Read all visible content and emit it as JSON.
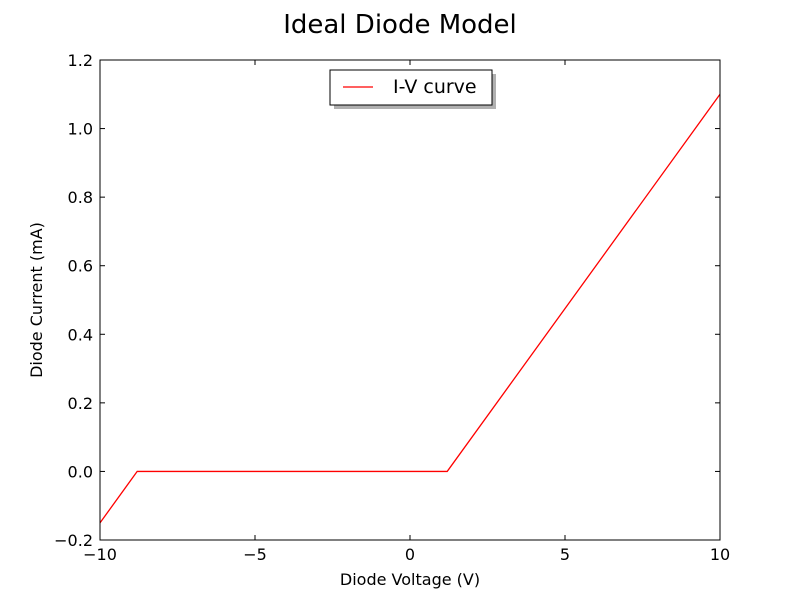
{
  "chart_data": {
    "type": "line",
    "title": "Ideal Diode Model",
    "xlabel": "Diode Voltage (V)",
    "ylabel": "Diode Current (mA)",
    "xlim": [
      -10,
      10
    ],
    "ylim": [
      -0.2,
      1.2
    ],
    "xticks": [
      {
        "value": -10,
        "label": "−10"
      },
      {
        "value": -5,
        "label": "−5"
      },
      {
        "value": 0,
        "label": "0"
      },
      {
        "value": 5,
        "label": "5"
      },
      {
        "value": 10,
        "label": "10"
      }
    ],
    "yticks": [
      {
        "value": -0.2,
        "label": "−0.2"
      },
      {
        "value": 0.0,
        "label": "0.0"
      },
      {
        "value": 0.2,
        "label": "0.2"
      },
      {
        "value": 0.4,
        "label": "0.4"
      },
      {
        "value": 0.6,
        "label": "0.6"
      },
      {
        "value": 0.8,
        "label": "0.8"
      },
      {
        "value": 1.0,
        "label": "1.0"
      },
      {
        "value": 1.2,
        "label": "1.2"
      }
    ],
    "grid": false,
    "legend_position": "upper-center",
    "series": [
      {
        "name": "I-V curve",
        "color": "#ff0000",
        "x": [
          -10,
          -8.8,
          1.2,
          10
        ],
        "y": [
          -0.15,
          0.0,
          0.0,
          1.1
        ]
      }
    ]
  }
}
